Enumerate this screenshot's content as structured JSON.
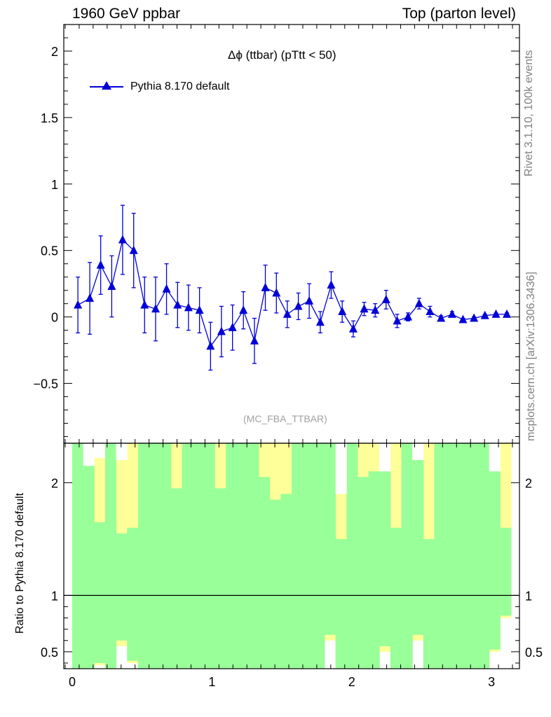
{
  "header": {
    "left": "1960 GeV ppbar",
    "right": "Top (parton level)"
  },
  "side_labels": {
    "top": "Rivet 3.1.10,  100k events",
    "bottom": "mcplots.cern.ch [arXiv:1306.3436]"
  },
  "watermark": "(MC_FBA_TTBAR)",
  "chart_data": [
    {
      "type": "line",
      "title": "Δϕ (ttbar) (pTtt < 50)",
      "xlim": [
        -0.06,
        3.2
      ],
      "ylim": [
        -0.95,
        2.2
      ],
      "y_ticks": [
        -0.5,
        0,
        0.5,
        1,
        1.5,
        2
      ],
      "y_tick_labels": [
        "−0.5",
        "0",
        "0.5",
        "1",
        "1.5",
        "2"
      ],
      "legend": "top-left",
      "series": [
        {
          "name": "Pythia 8.170 default",
          "color": "#0000d8",
          "marker": "triangle-up",
          "x": [
            0.041,
            0.126,
            0.204,
            0.283,
            0.361,
            0.44,
            0.518,
            0.597,
            0.675,
            0.754,
            0.832,
            0.911,
            0.99,
            1.068,
            1.147,
            1.225,
            1.304,
            1.382,
            1.461,
            1.539,
            1.618,
            1.696,
            1.775,
            1.853,
            1.932,
            2.011,
            2.089,
            2.168,
            2.246,
            2.325,
            2.403,
            2.482,
            2.56,
            2.639,
            2.718,
            2.796,
            2.875,
            2.953,
            3.032,
            3.11
          ],
          "y": [
            0.09,
            0.14,
            0.39,
            0.23,
            0.58,
            0.5,
            0.09,
            0.06,
            0.21,
            0.09,
            0.07,
            0.05,
            -0.22,
            -0.11,
            -0.08,
            0.05,
            -0.18,
            0.22,
            0.18,
            0.02,
            0.08,
            0.12,
            -0.04,
            0.24,
            0.04,
            -0.09,
            0.06,
            0.05,
            0.13,
            -0.03,
            0.0,
            0.1,
            0.04,
            -0.01,
            0.02,
            -0.02,
            -0.01,
            0.01,
            0.02,
            0.02
          ],
          "yerr": [
            0.21,
            0.27,
            0.22,
            0.23,
            0.26,
            0.28,
            0.21,
            0.24,
            0.19,
            0.17,
            0.17,
            0.17,
            0.18,
            0.19,
            0.17,
            0.14,
            0.17,
            0.17,
            0.15,
            0.1,
            0.1,
            0.13,
            0.08,
            0.1,
            0.08,
            0.06,
            0.05,
            0.05,
            0.07,
            0.05,
            0.03,
            0.04,
            0.04,
            0.02,
            0.02,
            0.01,
            0.01,
            0.01,
            0.01,
            0.01
          ]
        }
      ]
    },
    {
      "type": "area",
      "ylabel": "Ratio to Pythia 8.170 default",
      "xlim": [
        -0.06,
        3.2
      ],
      "ylim": [
        0.35,
        2.35
      ],
      "x_ticks": [
        0,
        1,
        2,
        3
      ],
      "x_tick_labels": [
        "0",
        "1",
        "2",
        "3"
      ],
      "y_ticks": [
        0.5,
        1,
        2
      ],
      "y_tick_labels": [
        "0.5",
        "1",
        "2"
      ],
      "reference_line": 1,
      "bin_edges": [
        0.0,
        0.0785,
        0.157,
        0.2355,
        0.314,
        0.3925,
        0.471,
        0.5495,
        0.628,
        0.7065,
        0.785,
        0.8635,
        0.942,
        1.0205,
        1.099,
        1.1775,
        1.256,
        1.3345,
        1.413,
        1.4915,
        1.57,
        1.6485,
        1.727,
        1.8055,
        1.884,
        1.9625,
        2.041,
        2.1195,
        2.198,
        2.2765,
        2.355,
        2.4335,
        2.512,
        2.5905,
        2.669,
        2.7475,
        2.826,
        2.9045,
        2.983,
        3.0615,
        3.14
      ],
      "series": [
        {
          "name": "yellow band",
          "color": "#ffff99",
          "low": [
            0.35,
            0.35,
            0.38,
            0.35,
            0.55,
            0.4,
            0.35,
            0.35,
            0.35,
            0.35,
            0.35,
            0.35,
            0.35,
            0.35,
            0.35,
            0.35,
            0.35,
            0.35,
            0.35,
            0.35,
            0.35,
            0.35,
            0.35,
            0.6,
            0.35,
            0.35,
            0.35,
            0.35,
            0.5,
            0.35,
            0.35,
            0.6,
            0.35,
            0.35,
            0.35,
            0.35,
            0.35,
            0.35,
            0.5,
            0.8
          ],
          "high": [
            2.35,
            2.35,
            2.22,
            2.35,
            2.35,
            2.35,
            2.35,
            2.35,
            2.35,
            2.35,
            2.35,
            2.35,
            2.35,
            2.35,
            2.35,
            2.35,
            2.35,
            2.35,
            2.35,
            2.35,
            2.35,
            2.35,
            2.35,
            2.35,
            2.35,
            2.35,
            2.35,
            2.35,
            2.35,
            2.35,
            2.35,
            2.35,
            2.35,
            2.35,
            2.35,
            2.35,
            2.35,
            2.35,
            2.35,
            2.35
          ]
        },
        {
          "name": "green band",
          "color": "#99ff99",
          "low": [
            0.35,
            0.35,
            0.4,
            0.35,
            0.6,
            0.42,
            0.35,
            0.35,
            0.35,
            0.35,
            0.35,
            0.35,
            0.35,
            0.35,
            0.35,
            0.35,
            0.35,
            0.35,
            0.35,
            0.35,
            0.35,
            0.35,
            0.35,
            0.65,
            0.35,
            0.35,
            0.35,
            0.35,
            0.55,
            0.35,
            0.35,
            0.65,
            0.35,
            0.35,
            0.35,
            0.35,
            0.35,
            0.35,
            0.52,
            0.82
          ],
          "high": [
            2.35,
            2.15,
            1.65,
            2.35,
            1.55,
            1.6,
            2.35,
            2.35,
            2.35,
            1.95,
            2.35,
            2.35,
            2.35,
            1.95,
            2.35,
            2.35,
            2.35,
            2.05,
            1.85,
            1.9,
            2.35,
            2.35,
            2.35,
            2.35,
            1.5,
            2.35,
            2.05,
            2.1,
            2.35,
            1.6,
            2.35,
            2.35,
            1.5,
            2.35,
            2.35,
            2.35,
            2.35,
            2.35,
            2.35,
            1.6
          ]
        },
        {
          "name": "white top",
          "color": "#ffffff",
          "low": [
            2.35,
            2.15,
            2.35,
            2.35,
            2.2,
            2.35,
            2.35,
            2.35,
            2.35,
            2.35,
            2.35,
            2.35,
            2.35,
            2.35,
            2.35,
            2.35,
            2.35,
            2.35,
            2.35,
            2.35,
            2.35,
            2.35,
            2.35,
            2.35,
            1.9,
            2.35,
            2.35,
            2.35,
            2.1,
            2.35,
            2.35,
            2.2,
            2.35,
            2.35,
            2.35,
            2.35,
            2.35,
            2.35,
            2.1,
            2.35
          ],
          "high": [
            2.35,
            2.35,
            2.35,
            2.35,
            2.35,
            2.35,
            2.35,
            2.35,
            2.35,
            2.35,
            2.35,
            2.35,
            2.35,
            2.35,
            2.35,
            2.35,
            2.35,
            2.35,
            2.35,
            2.35,
            2.35,
            2.35,
            2.35,
            2.35,
            2.35,
            2.35,
            2.35,
            2.35,
            2.35,
            2.35,
            2.35,
            2.35,
            2.35,
            2.35,
            2.35,
            2.35,
            2.35,
            2.35,
            2.35,
            2.35
          ]
        }
      ]
    }
  ]
}
